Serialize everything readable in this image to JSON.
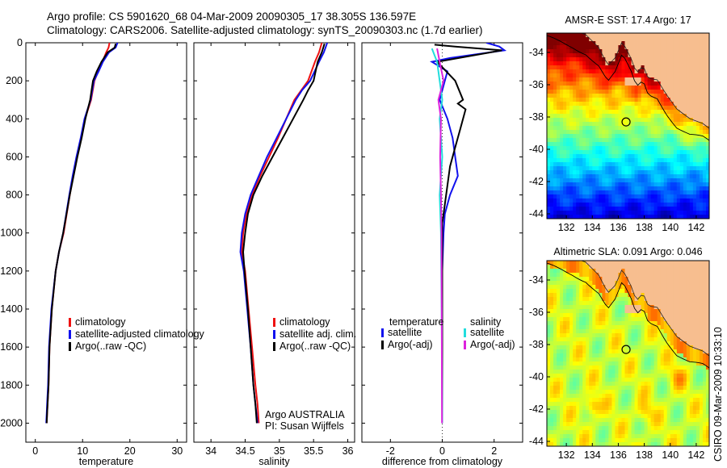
{
  "header": {
    "line1": "Argo profile: CS 5901620_68 04-Mar-2009 20090305_17 38.305S 136.597E",
    "line2": "Climatology: CARS2006. Satellite-adjusted climatology: synTS_20090303.nc (1.7d earlier)"
  },
  "side_label": "CSIRO 09-Mar-2009 10:33:10",
  "colors": {
    "red": "#ee1111",
    "blue": "#1111ee",
    "black": "#000000",
    "cyan": "#22dddd",
    "magenta": "#dd22dd"
  },
  "chart_data": [
    {
      "id": "temperature",
      "type": "line",
      "xlabel": "temperature",
      "ylabel": "",
      "xlim": [
        -2,
        32
      ],
      "ylim": [
        2100,
        0
      ],
      "xticks": [
        0,
        10,
        20,
        30
      ],
      "yticks": [
        0,
        200,
        400,
        600,
        800,
        1000,
        1200,
        1400,
        1600,
        1800,
        2000
      ],
      "legend": {
        "placement": "lower-middle",
        "items": [
          {
            "label": "climatology",
            "color": "#ee1111"
          },
          {
            "label": "satellite-adjusted climatology",
            "color": "#1111ee"
          },
          {
            "label": "Argo(..raw -QC)",
            "color": "#000000"
          }
        ]
      },
      "series": [
        {
          "name": "climatology",
          "color": "#ee1111",
          "x": [
            15.7,
            15.5,
            15.0,
            14.2,
            13.3,
            12.5,
            11.8,
            10.5,
            9.7,
            8.8,
            8.0,
            7.3,
            6.0,
            5.0,
            4.3,
            3.5,
            3.0,
            2.8,
            2.6,
            2.5,
            2.4
          ],
          "y": [
            0,
            25,
            50,
            100,
            150,
            200,
            300,
            400,
            500,
            600,
            700,
            800,
            1000,
            1100,
            1200,
            1400,
            1600,
            1800,
            1900,
            1950,
            2000
          ]
        },
        {
          "name": "satellite-adjusted climatology",
          "color": "#1111ee",
          "x": [
            17.4,
            17.0,
            15.6,
            14.3,
            13.4,
            12.4,
            11.7,
            10.4,
            9.6,
            8.7,
            7.9,
            7.2,
            5.9,
            5.0,
            4.3,
            3.4,
            2.9,
            2.7,
            2.5,
            2.4,
            2.3
          ],
          "y": [
            0,
            25,
            50,
            100,
            150,
            200,
            300,
            400,
            500,
            600,
            700,
            800,
            1000,
            1100,
            1200,
            1400,
            1600,
            1800,
            1900,
            1950,
            2000
          ]
        },
        {
          "name": "Argo(..raw -QC)",
          "color": "#000000",
          "x": [
            17.0,
            16.8,
            15.3,
            14.0,
            13.0,
            12.2,
            11.6,
            10.6,
            9.8,
            8.9,
            8.1,
            7.3,
            5.9,
            5.0,
            4.3,
            3.5,
            3.0,
            2.8,
            2.6,
            2.5,
            2.4
          ],
          "y": [
            5,
            25,
            50,
            100,
            150,
            200,
            300,
            400,
            500,
            600,
            700,
            800,
            1000,
            1100,
            1200,
            1400,
            1600,
            1800,
            1900,
            1950,
            2000
          ]
        }
      ]
    },
    {
      "id": "salinity",
      "type": "line",
      "xlabel": "salinity",
      "ylabel": "",
      "xlim": [
        33.75,
        36.1
      ],
      "ylim": [
        2100,
        0
      ],
      "xticks": [
        34,
        34.5,
        35,
        35.5,
        36
      ],
      "xticklabels": [
        "34",
        "34.5",
        "35",
        "35.5",
        "36"
      ],
      "legend": {
        "placement": "lower-right",
        "items": [
          {
            "label": "climatology",
            "color": "#ee1111"
          },
          {
            "label": "satellite adj. clim.",
            "color": "#1111ee"
          },
          {
            "label": "Argo(..raw -QC)",
            "color": "#000000"
          }
        ]
      },
      "annotation": [
        "Argo AUSTRALIA",
        "PI: Susan Wijffels"
      ],
      "series": [
        {
          "name": "climatology",
          "color": "#ee1111",
          "x": [
            35.62,
            35.58,
            35.52,
            35.42,
            35.32,
            35.22,
            35.1,
            34.98,
            34.85,
            34.72,
            34.6,
            34.52,
            34.47,
            34.45,
            34.5,
            34.55,
            34.6,
            34.65,
            34.68,
            34.7
          ],
          "y": [
            0,
            50,
            100,
            200,
            250,
            300,
            400,
            500,
            600,
            700,
            800,
            900,
            1000,
            1100,
            1200,
            1400,
            1600,
            1800,
            1900,
            2000
          ]
        },
        {
          "name": "satellite adj. clim.",
          "color": "#1111ee",
          "x": [
            35.7,
            35.65,
            35.58,
            35.45,
            35.33,
            35.24,
            35.1,
            34.96,
            34.82,
            34.7,
            34.58,
            34.5,
            34.45,
            34.43,
            34.48,
            34.53,
            34.58,
            34.62,
            34.65,
            34.68
          ],
          "y": [
            0,
            50,
            100,
            200,
            250,
            300,
            400,
            500,
            600,
            700,
            800,
            900,
            1000,
            1100,
            1200,
            1400,
            1600,
            1800,
            1900,
            2000
          ]
        },
        {
          "name": "Argo(..raw -QC)",
          "color": "#000000",
          "x": [
            35.66,
            35.62,
            35.56,
            35.5,
            35.42,
            35.35,
            35.2,
            35.05,
            34.9,
            34.75,
            34.62,
            34.54,
            34.5,
            34.47,
            34.49,
            34.54,
            34.58,
            34.62,
            34.65,
            34.67
          ],
          "y": [
            5,
            50,
            100,
            200,
            250,
            300,
            400,
            500,
            600,
            700,
            800,
            900,
            1000,
            1100,
            1200,
            1400,
            1600,
            1800,
            1900,
            2000
          ]
        }
      ]
    },
    {
      "id": "difference",
      "type": "line",
      "xlabel": "difference from climatology",
      "ylabel": "",
      "xlim": [
        -3.1,
        3.1
      ],
      "ylim": [
        2100,
        0
      ],
      "xticks": [
        -2,
        0,
        2
      ],
      "legend": {
        "placement": "lower",
        "groups": [
          {
            "title": "temperature",
            "items": [
              {
                "label": "satellite",
                "color": "#1111ee"
              },
              {
                "label": "Argo(-adj)",
                "color": "#000000"
              }
            ]
          },
          {
            "title": "salinity",
            "items": [
              {
                "label": "satellite",
                "color": "#22dddd"
              },
              {
                "label": "Argo(-adj)",
                "color": "#dd22dd"
              }
            ]
          }
        ]
      },
      "series": [
        {
          "name": "temperature satellite",
          "color": "#1111ee",
          "x": [
            1.7,
            2.2,
            2.4,
            0.3,
            -0.4,
            0.2,
            0.1,
            -0.1,
            0.2,
            0.4,
            0.5,
            0.6,
            0.3,
            0.1,
            0.05,
            0.0,
            0.0,
            0.0,
            0.0
          ],
          "y": [
            0,
            20,
            40,
            80,
            100,
            150,
            200,
            300,
            400,
            500,
            600,
            700,
            800,
            900,
            1000,
            1200,
            1500,
            1800,
            2000
          ]
        },
        {
          "name": "temperature Argo(-adj)",
          "color": "#000000",
          "x": [
            -0.3,
            0.5,
            2.3,
            -0.2,
            0.5,
            0.8,
            0.6,
            0.9,
            0.7,
            0.5,
            0.3,
            0.2,
            0.1,
            0.0,
            0.0,
            0.0,
            0.0
          ],
          "y": [
            10,
            20,
            40,
            100,
            200,
            300,
            320,
            350,
            450,
            550,
            650,
            750,
            850,
            950,
            1200,
            1600,
            2000
          ]
        },
        {
          "name": "salinity satellite",
          "color": "#22dddd",
          "x": [
            -0.4,
            -0.2,
            -0.1,
            0.0,
            -0.1,
            0.0,
            -0.1,
            -0.05,
            -0.02,
            0.0
          ],
          "y": [
            30,
            100,
            200,
            300,
            400,
            600,
            800,
            1000,
            1500,
            2000
          ]
        },
        {
          "name": "salinity Argo(-adj)",
          "color": "#dd22dd",
          "x": [
            -0.2,
            -0.1,
            0.05,
            -0.15,
            -0.05,
            -0.08,
            -0.05,
            -0.03,
            -0.02,
            -0.01
          ],
          "y": [
            30,
            100,
            200,
            300,
            400,
            600,
            800,
            1000,
            1500,
            2000
          ]
        }
      ]
    },
    {
      "id": "sst_map",
      "type": "heatmap",
      "title": "AMSR-E SST: 17.4  Argo: 17",
      "xlim": [
        130.5,
        143
      ],
      "ylim": [
        -44.3,
        -32.8
      ],
      "xticks": [
        132,
        134,
        136,
        138,
        140,
        142
      ],
      "yticks": [
        -34,
        -36,
        -38,
        -40,
        -42,
        -44
      ],
      "marker": {
        "lon": 136.597,
        "lat": -38.305
      },
      "colormap": "jet",
      "legend": {
        "placement": "none"
      }
    },
    {
      "id": "sla_map",
      "type": "heatmap",
      "title": "Altimetric SLA: 0.091  Argo: 0.046",
      "xlim": [
        130.5,
        143
      ],
      "ylim": [
        -44.3,
        -32.8
      ],
      "xticks": [
        132,
        134,
        136,
        138,
        140,
        142
      ],
      "yticks": [
        -34,
        -36,
        -38,
        -40,
        -42,
        -44
      ],
      "marker": {
        "lon": 136.597,
        "lat": -38.305
      },
      "colormap": "jet",
      "legend": {
        "placement": "none"
      }
    }
  ]
}
